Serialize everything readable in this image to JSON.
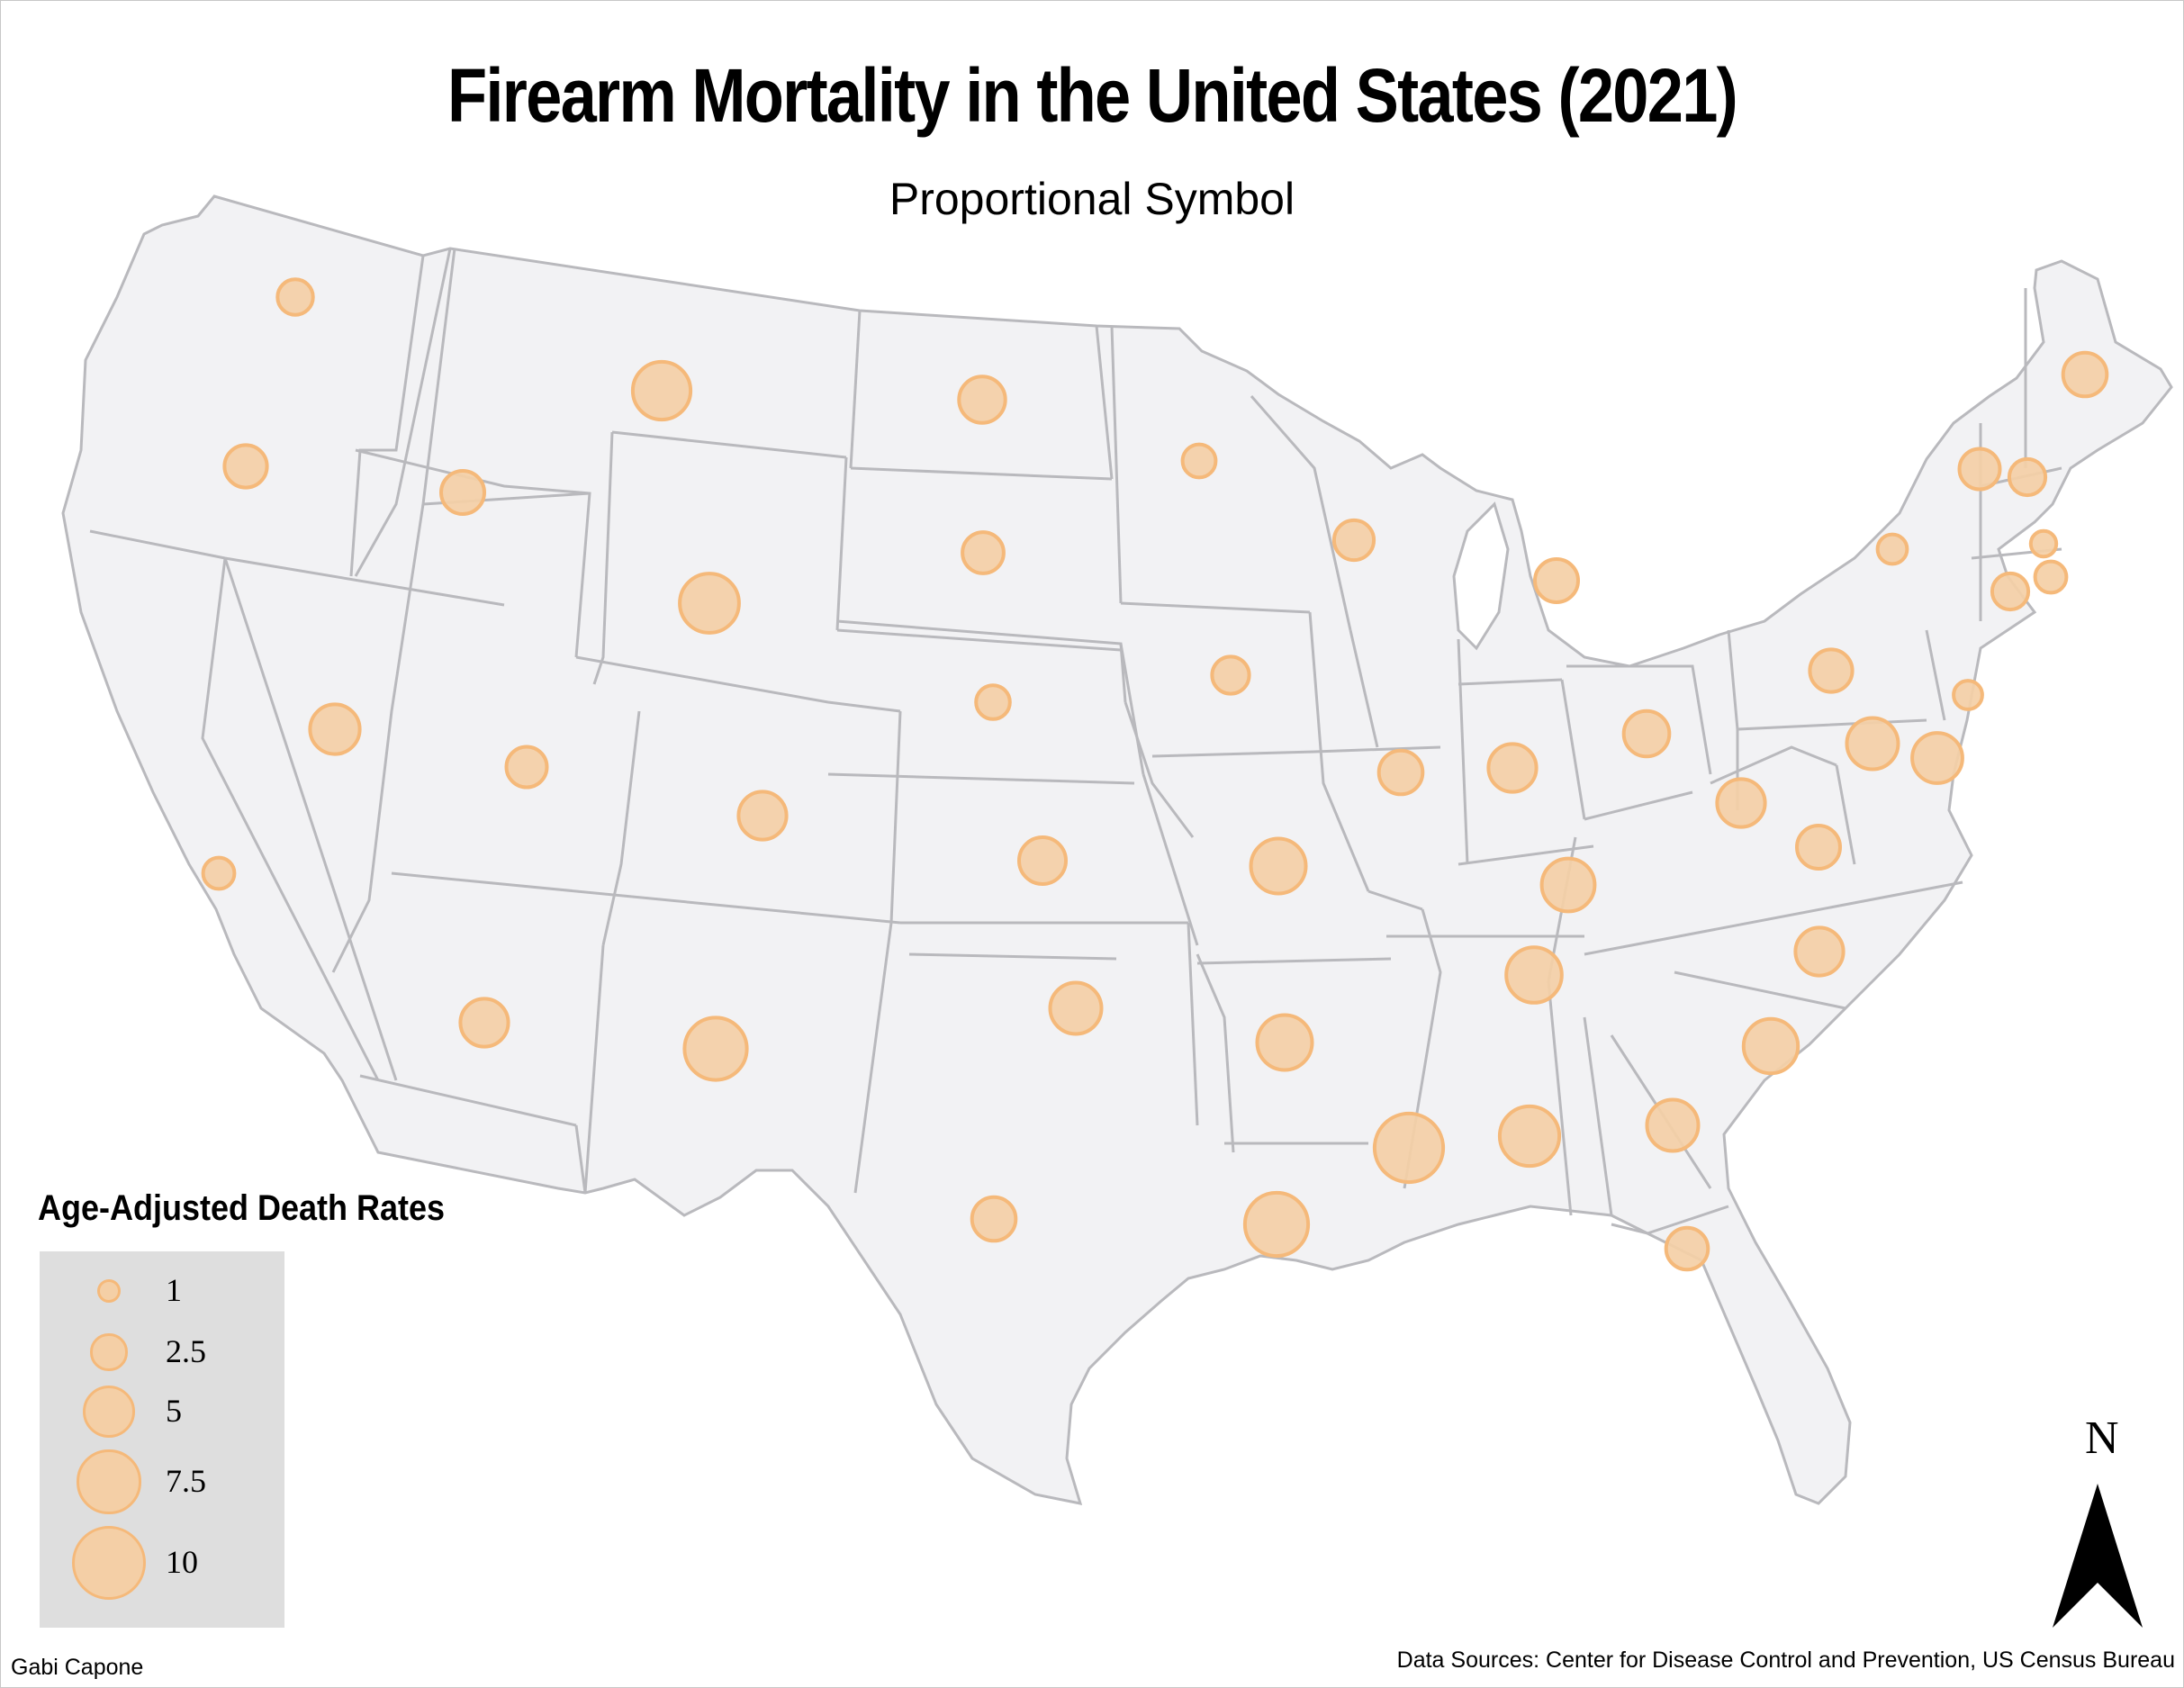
{
  "title": "Firearm Mortality in the United States (2021)",
  "subtitle": "Proportional Symbol",
  "legend": {
    "title": "Age-Adjusted Death Rates",
    "items": [
      {
        "label": "1",
        "value": 1
      },
      {
        "label": "2.5",
        "value": 2.5
      },
      {
        "label": "5",
        "value": 5
      },
      {
        "label": "7.5",
        "value": 7.5
      },
      {
        "label": "10",
        "value": 10
      }
    ]
  },
  "north_label": "N",
  "author": "Gabi Capone",
  "sources": "Data Sources: Center for Disease Control and Prevention, US Census Bureau",
  "colors": {
    "land": "#f2f2f4",
    "border": "#b9b9bd",
    "symbol_fill": "#f4cfa6",
    "symbol_stroke": "#f5b97a",
    "legend_bg": "#dedede"
  },
  "symbols": [
    {
      "state": "Washington",
      "rate": 2.3
    },
    {
      "state": "Oregon",
      "rate": 3.3
    },
    {
      "state": "California",
      "rate": 1.8
    },
    {
      "state": "Idaho",
      "rate": 3.4
    },
    {
      "state": "Nevada",
      "rate": 4.5
    },
    {
      "state": "Montana",
      "rate": 6.1
    },
    {
      "state": "Wyoming",
      "rate": 6.4
    },
    {
      "state": "Utah",
      "rate": 3.0
    },
    {
      "state": "Arizona",
      "rate": 4.2
    },
    {
      "state": "Colorado",
      "rate": 4.2
    },
    {
      "state": "New Mexico",
      "rate": 7.1
    },
    {
      "state": "North Dakota",
      "rate": 3.9
    },
    {
      "state": "South Dakota",
      "rate": 3.1
    },
    {
      "state": "Nebraska",
      "rate": 2.1
    },
    {
      "state": "Kansas",
      "rate": 4.0
    },
    {
      "state": "Oklahoma",
      "rate": 4.8
    },
    {
      "state": "Texas",
      "rate": 3.5
    },
    {
      "state": "Minnesota",
      "rate": 2.0
    },
    {
      "state": "Iowa",
      "rate": 2.5
    },
    {
      "state": "Missouri",
      "rate": 5.5
    },
    {
      "state": "Arkansas",
      "rate": 5.5
    },
    {
      "state": "Louisiana",
      "rate": 7.3
    },
    {
      "state": "Wisconsin",
      "rate": 2.9
    },
    {
      "state": "Illinois",
      "rate": 3.5
    },
    {
      "state": "Michigan",
      "rate": 3.4
    },
    {
      "state": "Indiana",
      "rate": 4.2
    },
    {
      "state": "Ohio",
      "rate": 3.8
    },
    {
      "state": "Kentucky",
      "rate": 5.1
    },
    {
      "state": "Tennessee",
      "rate": 5.6
    },
    {
      "state": "Mississippi",
      "rate": 8.6
    },
    {
      "state": "Alabama",
      "rate": 6.5
    },
    {
      "state": "Georgia",
      "rate": 4.8
    },
    {
      "state": "Florida",
      "rate": 3.2
    },
    {
      "state": "South Carolina",
      "rate": 5.4
    },
    {
      "state": "North Carolina",
      "rate": 4.2
    },
    {
      "state": "Virginia",
      "rate": 3.4
    },
    {
      "state": "West Virginia",
      "rate": 4.2
    },
    {
      "state": "Pennsylvania",
      "rate": 3.3
    },
    {
      "state": "New York",
      "rate": 1.6
    },
    {
      "state": "Maryland",
      "rate": 4.8
    },
    {
      "state": "Delaware",
      "rate": 4.6
    },
    {
      "state": "New Jersey",
      "rate": 1.5
    },
    {
      "state": "Connecticut",
      "rate": 2.4
    },
    {
      "state": "Rhode Island",
      "rate": 1.8
    },
    {
      "state": "Massachusetts",
      "rate": 1.2
    },
    {
      "state": "Vermont",
      "rate": 3.0
    },
    {
      "state": "New Hampshire",
      "rate": 2.4
    },
    {
      "state": "Maine",
      "rate": 3.5
    }
  ]
}
